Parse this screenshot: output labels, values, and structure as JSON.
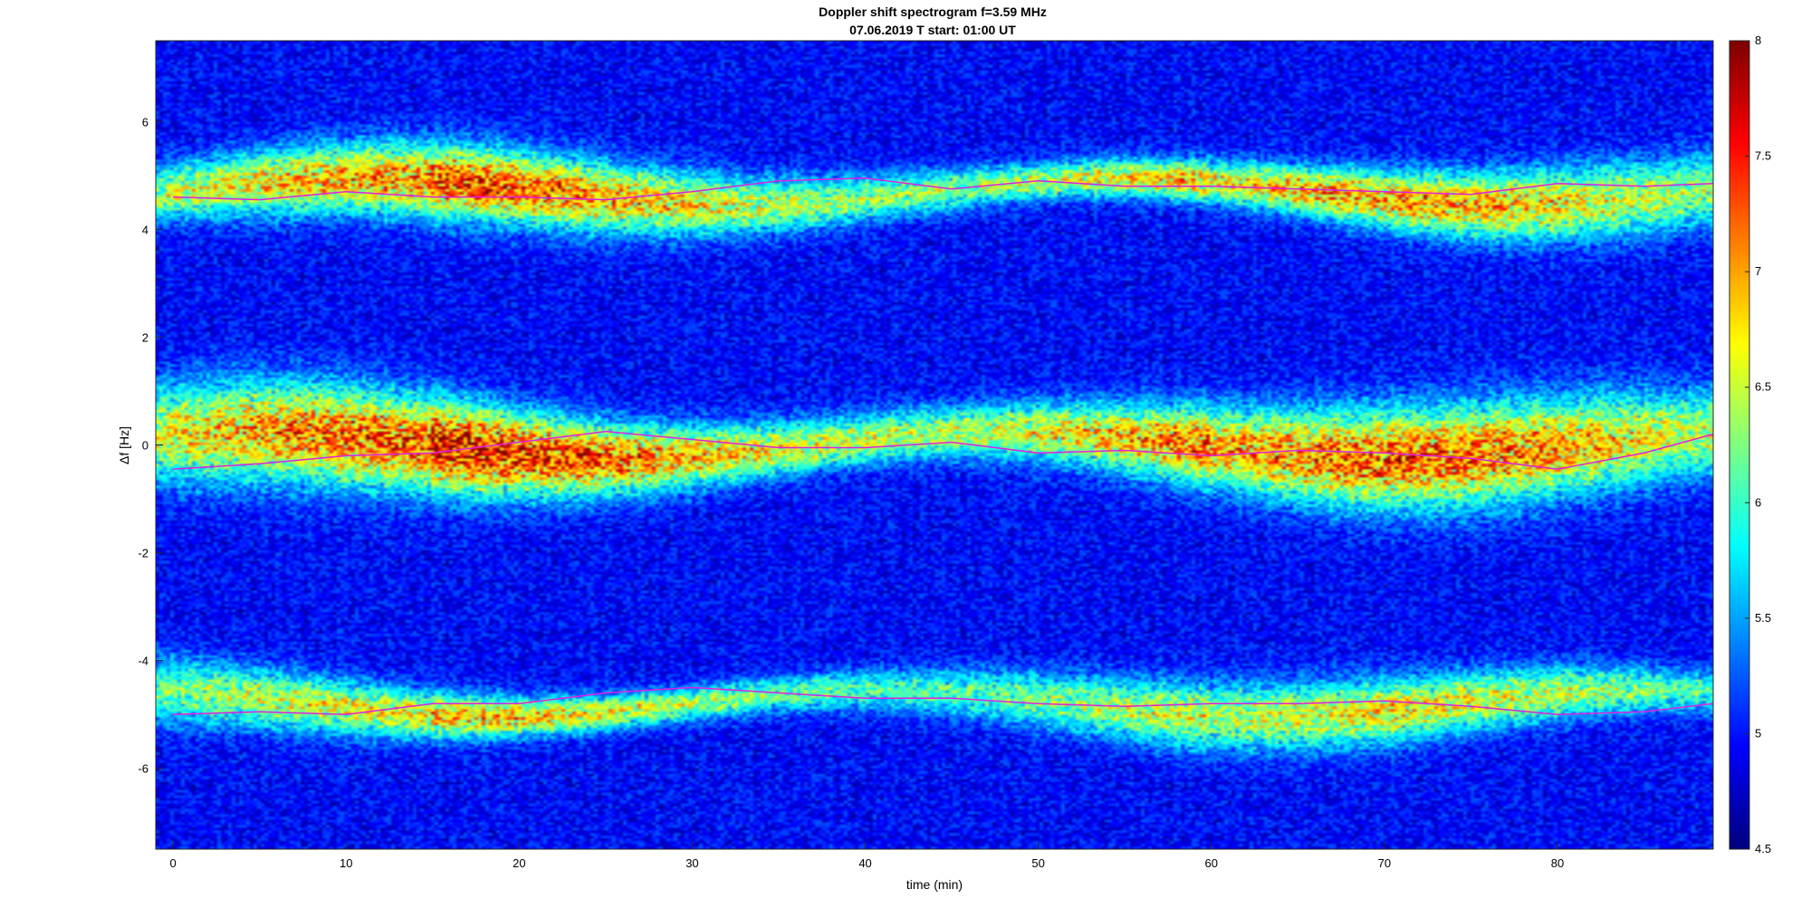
{
  "chart_data": {
    "type": "heatmap",
    "title": "Doppler shift spectrogram f=3.59 MHz",
    "subtitle": "07.06.2019    T start: 01:00 UT",
    "xlabel": "time (min)",
    "ylabel": "Δf [Hz]",
    "xlim": [
      -1,
      89
    ],
    "ylim": [
      -7.5,
      7.5
    ],
    "xticks": [
      0,
      10,
      20,
      30,
      40,
      50,
      60,
      70,
      80
    ],
    "yticks": [
      -6,
      -4,
      -2,
      0,
      2,
      4,
      6
    ],
    "colorbar": {
      "colormap": "jet",
      "range": [
        4.5,
        8
      ],
      "ticks": [
        4.5,
        5,
        5.5,
        6,
        6.5,
        7,
        7.5,
        8
      ]
    },
    "bands": [
      {
        "center_hz": 4.7,
        "halfwidth_hz": 0.55,
        "peak": 7.3
      },
      {
        "center_hz": 0.0,
        "halfwidth_hz": 0.75,
        "peak": 7.6
      },
      {
        "center_hz": -4.8,
        "halfwidth_hz": 0.5,
        "peak": 6.9
      }
    ],
    "traces": [
      {
        "color": "#e020e0",
        "x": [
          0,
          5,
          10,
          15,
          20,
          25,
          30,
          35,
          40,
          45,
          50,
          55,
          60,
          65,
          70,
          75,
          80,
          85,
          89
        ],
        "y": [
          4.6,
          4.55,
          4.7,
          4.6,
          4.6,
          4.55,
          4.7,
          4.9,
          4.95,
          4.75,
          4.9,
          4.8,
          4.8,
          4.75,
          4.7,
          4.65,
          4.85,
          4.8,
          4.85
        ]
      },
      {
        "color": "#e020e0",
        "x": [
          0,
          5,
          10,
          15,
          20,
          25,
          30,
          35,
          40,
          45,
          50,
          55,
          60,
          65,
          70,
          75,
          80,
          85,
          89
        ],
        "y": [
          -0.45,
          -0.35,
          -0.2,
          -0.15,
          0.05,
          0.25,
          0.1,
          -0.05,
          -0.05,
          0.05,
          -0.15,
          -0.1,
          -0.2,
          -0.1,
          -0.15,
          -0.25,
          -0.45,
          -0.15,
          0.2
        ]
      },
      {
        "color": "#e020e0",
        "x": [
          0,
          5,
          10,
          15,
          20,
          25,
          30,
          35,
          40,
          45,
          50,
          55,
          60,
          65,
          70,
          75,
          80,
          85,
          89
        ],
        "y": [
          -5.0,
          -4.95,
          -5.0,
          -4.8,
          -4.8,
          -4.6,
          -4.5,
          -4.6,
          -4.7,
          -4.7,
          -4.8,
          -4.85,
          -4.8,
          -4.8,
          -4.75,
          -4.85,
          -5.0,
          -4.95,
          -4.8
        ]
      }
    ]
  }
}
